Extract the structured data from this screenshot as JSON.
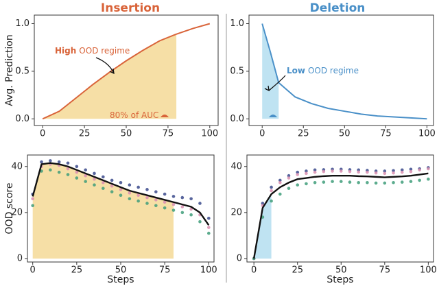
{
  "panels": {
    "left_title": "Insertion",
    "right_title": "Deletion"
  },
  "chart_data": [
    {
      "type": "line",
      "ylabel": "Avg. Prediction",
      "xlim": [
        -5,
        105
      ],
      "ylim": [
        -0.07,
        1.09
      ],
      "xticks": [
        0,
        25,
        50,
        75,
        100
      ],
      "yticks": [
        {
          "value": 0,
          "label": "0.0"
        },
        {
          "value": 0.5,
          "label": "0.5"
        },
        {
          "value": 1,
          "label": "1.0"
        }
      ],
      "x": [
        0,
        10,
        20,
        30,
        40,
        50,
        60,
        70,
        80,
        90,
        100
      ],
      "series": [
        {
          "color": "#d9643a",
          "values": [
            0,
            0.08,
            0.22,
            0.36,
            0.49,
            0.61,
            0.72,
            0.82,
            0.89,
            0.95,
            1.0
          ]
        }
      ],
      "highlight": [
        0,
        80
      ],
      "highlight_color": "#f6dfa6",
      "annotations": [
        {
          "bold": "High",
          "text": "OOD regime"
        },
        {
          "bold": "80%",
          "text": "of AUC"
        }
      ]
    },
    {
      "type": "line",
      "xlim": [
        -8,
        104
      ],
      "ylim": [
        -0.07,
        1.09
      ],
      "xticks": [
        0,
        25,
        50,
        75,
        100
      ],
      "yticks": [
        {
          "value": 0,
          "label": "0.0"
        },
        {
          "value": 0.5,
          "label": "0.5"
        },
        {
          "value": 1,
          "label": "1.0"
        }
      ],
      "x": [
        0,
        5,
        10,
        20,
        30,
        40,
        50,
        60,
        70,
        80,
        90,
        100
      ],
      "series": [
        {
          "color": "#4a90c8",
          "values": [
            1.0,
            0.7,
            0.38,
            0.23,
            0.16,
            0.11,
            0.08,
            0.05,
            0.03,
            0.02,
            0.01,
            0.0
          ]
        }
      ],
      "highlight": [
        0,
        10
      ],
      "highlight_color": "#bfe3f2",
      "annotations": [
        {
          "bold": "Low",
          "text": "OOD regime"
        }
      ]
    },
    {
      "type": "line",
      "xlabel": "Steps",
      "ylabel": "OOD score",
      "xlim": [
        -3,
        103
      ],
      "ylim": [
        -1.5,
        45
      ],
      "xticks": [
        0,
        25,
        50,
        75,
        100
      ],
      "yticks": [
        0,
        20,
        40
      ],
      "x": [
        0,
        5,
        10,
        15,
        20,
        25,
        30,
        35,
        40,
        45,
        50,
        55,
        60,
        65,
        70,
        75,
        80,
        85,
        90,
        95,
        100
      ],
      "series": [
        {
          "color": "#111111",
          "values": [
            27,
            41,
            41.5,
            41,
            40,
            38.5,
            37,
            35.5,
            34,
            32.5,
            31,
            29.5,
            28.5,
            27.5,
            26.5,
            25.5,
            24.5,
            23.5,
            22.5,
            20,
            14.5
          ]
        },
        {
          "color": "#3b4a8c",
          "marker": true,
          "values": [
            28,
            42,
            42.5,
            42,
            41.5,
            40,
            38.5,
            37,
            35.5,
            34,
            33,
            32,
            31,
            30,
            29,
            28,
            27,
            26.5,
            26,
            24,
            17.5
          ]
        },
        {
          "color": "#d98fb0",
          "marker": true,
          "values": [
            26,
            40,
            41,
            40.5,
            39,
            37.5,
            36,
            34.5,
            33,
            31.5,
            30,
            28.5,
            27.5,
            26.5,
            25.5,
            24.5,
            23.5,
            22.5,
            21.5,
            19,
            13.5
          ]
        },
        {
          "color": "#3f9e7a",
          "marker": true,
          "values": [
            23,
            38,
            38.5,
            37.5,
            36.5,
            35,
            33.5,
            32,
            30.5,
            29,
            27.5,
            26,
            25,
            24,
            23,
            22,
            21,
            20,
            19,
            16,
            11
          ]
        }
      ],
      "highlight": [
        0,
        80
      ],
      "highlight_color": "#f6dfa6"
    },
    {
      "type": "line",
      "xlabel": "Steps",
      "xlim": [
        -4,
        103
      ],
      "ylim": [
        -1.5,
        45
      ],
      "xticks": [
        0,
        25,
        50,
        75,
        100
      ],
      "yticks": [
        0,
        20,
        40
      ],
      "x": [
        0,
        5,
        10,
        15,
        20,
        25,
        30,
        35,
        40,
        45,
        50,
        55,
        60,
        65,
        70,
        75,
        80,
        85,
        90,
        95,
        100
      ],
      "series": [
        {
          "color": "#111111",
          "values": [
            0,
            22,
            28,
            31,
            33,
            34.5,
            35,
            35.5,
            35.8,
            36,
            36,
            36,
            35.8,
            35.7,
            35.5,
            35.3,
            35.5,
            35.7,
            36,
            36.5,
            37
          ]
        },
        {
          "color": "#3b4a8c",
          "marker": true,
          "values": [
            0,
            24,
            31,
            34,
            36,
            37.5,
            38,
            38.5,
            38.6,
            38.8,
            38.8,
            38.6,
            38.5,
            38.3,
            38,
            38,
            38.2,
            38.5,
            38.8,
            39,
            39.5
          ]
        },
        {
          "color": "#d98fb0",
          "marker": true,
          "values": [
            0,
            23,
            29.5,
            33,
            35,
            36.5,
            37,
            37.5,
            37.8,
            38,
            38,
            37.8,
            37.6,
            37.5,
            37.2,
            37,
            37.2,
            37.5,
            37.8,
            38.5,
            39
          ]
        },
        {
          "color": "#3f9e7a",
          "marker": true,
          "values": [
            0,
            18,
            25,
            28,
            30.5,
            32,
            32.5,
            33,
            33.2,
            33.5,
            33.5,
            33.2,
            33,
            33,
            32.8,
            32.8,
            33,
            33.2,
            33.5,
            34,
            34.5
          ]
        }
      ],
      "highlight": [
        0,
        10
      ],
      "highlight_color": "#bfe3f2"
    }
  ]
}
